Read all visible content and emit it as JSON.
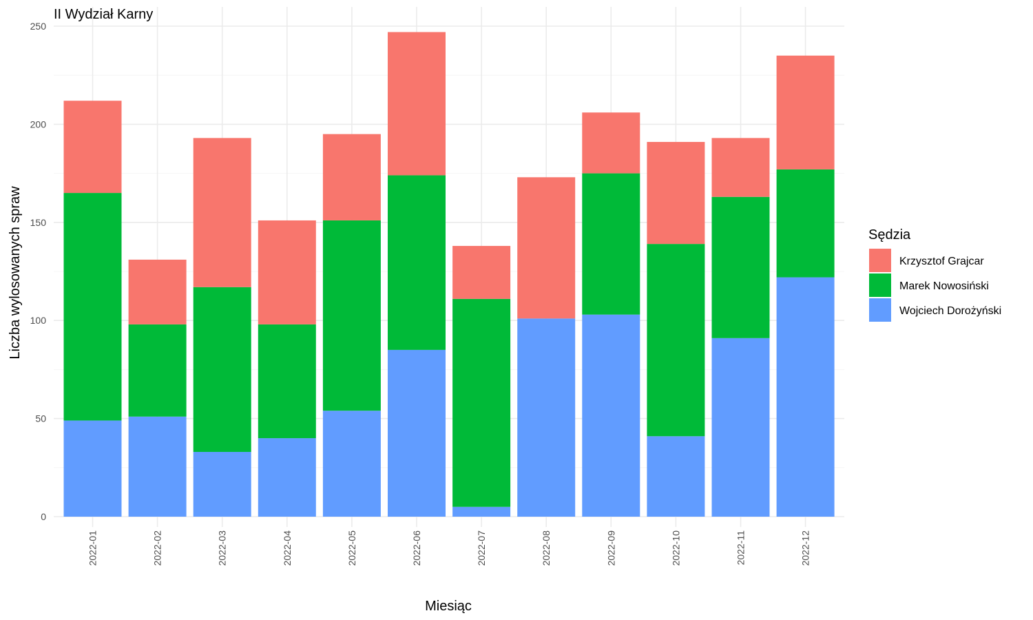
{
  "chart_data": {
    "type": "bar",
    "stacked": true,
    "title": "II Wydział Karny",
    "xlabel": "Miesiąc",
    "ylabel": "Liczba wylosowanych spraw",
    "ylim": [
      0,
      250
    ],
    "yticks": [
      0,
      50,
      100,
      150,
      200,
      250
    ],
    "grid": true,
    "legend_title": "Sędzia",
    "legend_position": "right",
    "categories": [
      "2022-01",
      "2022-02",
      "2022-03",
      "2022-04",
      "2022-05",
      "2022-06",
      "2022-07",
      "2022-08",
      "2022-09",
      "2022-10",
      "2022-11",
      "2022-12"
    ],
    "series": [
      {
        "name": "Wojciech Dorożyński",
        "color": "#619CFF",
        "values": [
          49,
          51,
          33,
          40,
          54,
          85,
          5,
          101,
          103,
          41,
          91,
          122
        ]
      },
      {
        "name": "Marek Nowosiński",
        "color": "#00BA38",
        "values": [
          116,
          47,
          84,
          58,
          97,
          89,
          106,
          0,
          72,
          98,
          72,
          55
        ]
      },
      {
        "name": "Krzysztof Grajcar",
        "color": "#F8766D",
        "values": [
          47,
          33,
          76,
          53,
          44,
          73,
          27,
          72,
          31,
          52,
          30,
          58
        ]
      }
    ],
    "legend_order": [
      "Krzysztof Grajcar",
      "Marek Nowosiński",
      "Wojciech Dorożyński"
    ]
  }
}
